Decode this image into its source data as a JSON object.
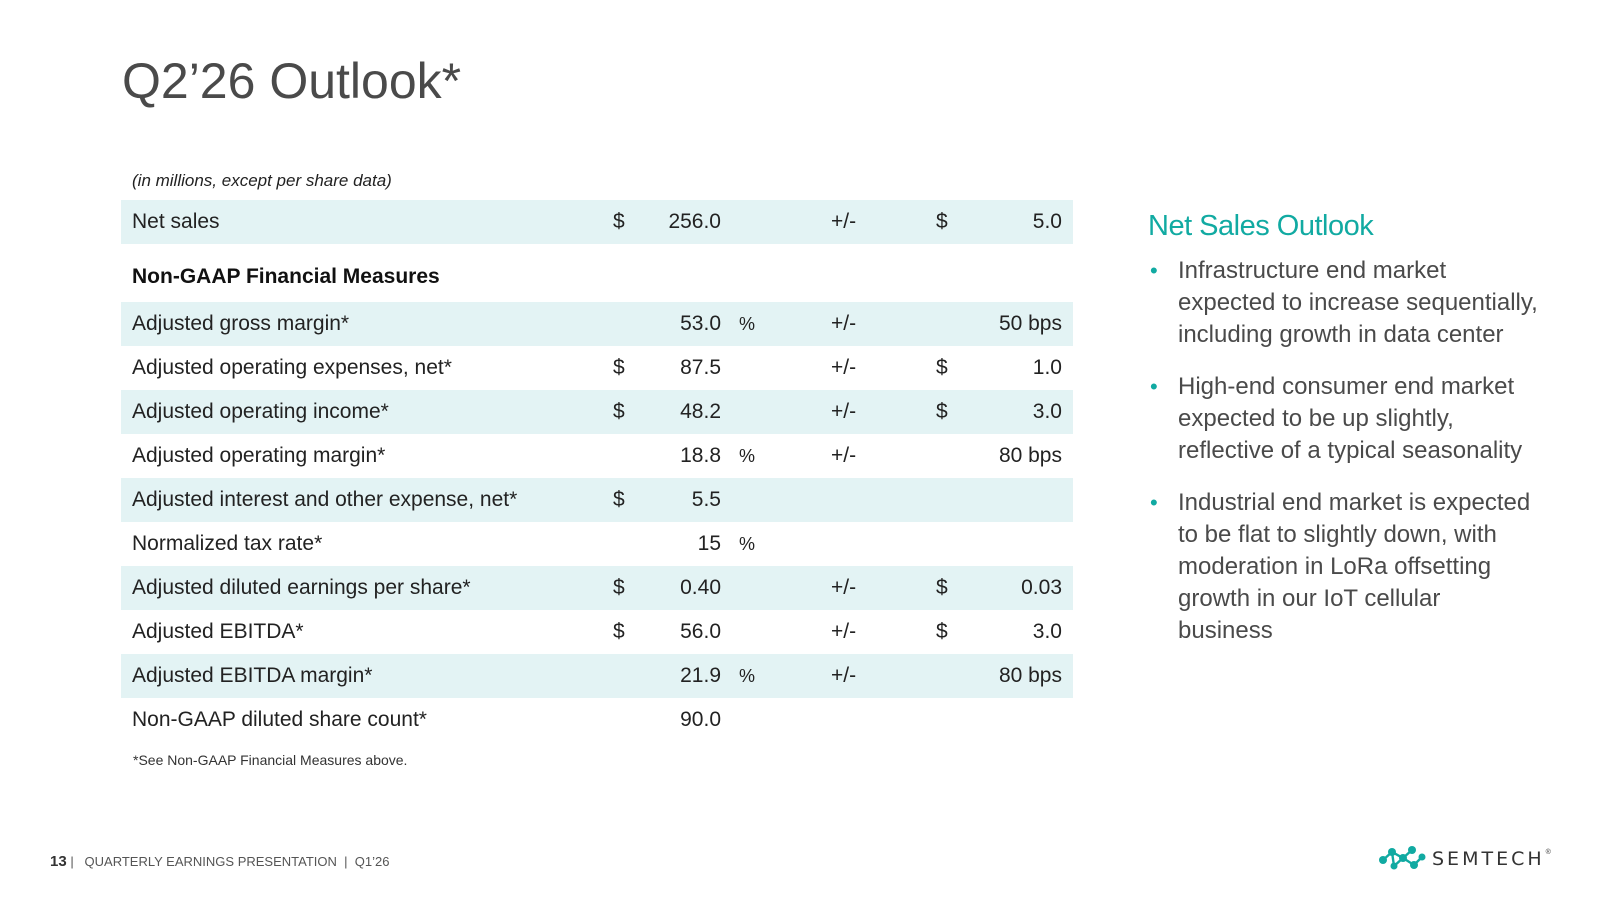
{
  "title": "Q2’26 Outlook*",
  "units_note": "(in millions, except per share data)",
  "net_sales_row": {
    "label": "Net sales",
    "cur": "$",
    "val": "256.0",
    "pct": "",
    "pm": "+/-",
    "cur2": "$",
    "var": "5.0"
  },
  "section_heading": "Non-GAAP Financial Measures",
  "rows": [
    {
      "label": "Adjusted gross margin*",
      "cur": "",
      "val": "53.0",
      "pct": "%",
      "pm": "+/-",
      "cur2": "",
      "var": "50 bps"
    },
    {
      "label": "Adjusted operating expenses, net*",
      "cur": "$",
      "val": "87.5",
      "pct": "",
      "pm": "+/-",
      "cur2": "$",
      "var": "1.0"
    },
    {
      "label": "Adjusted operating income*",
      "cur": "$",
      "val": "48.2",
      "pct": "",
      "pm": "+/-",
      "cur2": "$",
      "var": "3.0"
    },
    {
      "label": "Adjusted operating margin*",
      "cur": "",
      "val": "18.8",
      "pct": "%",
      "pm": "+/-",
      "cur2": "",
      "var": "80 bps"
    },
    {
      "label": "Adjusted interest and other expense, net*",
      "cur": "$",
      "val": "5.5",
      "pct": "",
      "pm": "",
      "cur2": "",
      "var": ""
    },
    {
      "label": "Normalized tax rate*",
      "cur": "",
      "val": "15",
      "pct": "%",
      "pm": "",
      "cur2": "",
      "var": ""
    },
    {
      "label": "Adjusted diluted earnings per share*",
      "cur": "$",
      "val": "0.40",
      "pct": "",
      "pm": "+/-",
      "cur2": "$",
      "var": "0.03"
    },
    {
      "label": "Adjusted EBITDA*",
      "cur": "$",
      "val": "56.0",
      "pct": "",
      "pm": "+/-",
      "cur2": "$",
      "var": "3.0"
    },
    {
      "label": "Adjusted EBITDA margin*",
      "cur": "",
      "val": "21.9",
      "pct": "%",
      "pm": "+/-",
      "cur2": "",
      "var": "80 bps"
    },
    {
      "label": "Non-GAAP diluted share count*",
      "cur": "",
      "val": "90.0",
      "pct": "",
      "pm": "",
      "cur2": "",
      "var": ""
    }
  ],
  "footnote": "*See Non-GAAP Financial Measures above.",
  "outlook": {
    "heading": "Net Sales Outlook",
    "bullet_glyph": "•",
    "bullets": [
      "Infrastructure end market expected to increase sequentially, including growth in data center",
      "High-end consumer end market expected to be up slightly, reflective of a typical seasonality",
      "Industrial end market is expected to be flat to slightly down, with moderation in LoRa offsetting growth in our IoT cellular business"
    ]
  },
  "footer": {
    "page_number": "13",
    "separator": "|",
    "presentation": "QUARTERLY EARNINGS PRESENTATION",
    "period": "Q1’26"
  },
  "logo": {
    "wordmark": "SEMTECH",
    "tm": "®",
    "color": "#11aaa2"
  },
  "colors": {
    "accent": "#11aaa2",
    "row_shade": "#e3f3f4",
    "title": "#4a4a4a"
  }
}
